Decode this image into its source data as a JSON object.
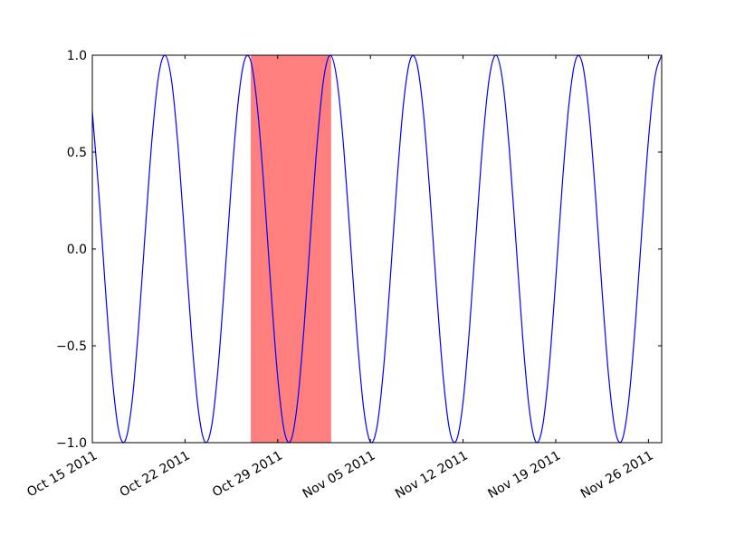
{
  "chart_data": {
    "type": "line",
    "x": [
      "2011-10-15 00:00",
      "2011-10-15 12:00",
      "2011-10-16 00:00",
      "2011-10-16 12:00",
      "2011-10-17 00:00",
      "2011-10-17 12:00",
      "2011-10-18 00:00",
      "2011-10-18 12:00",
      "2011-10-19 00:00",
      "2011-10-19 12:00",
      "2011-10-20 00:00",
      "2011-10-20 12:00",
      "2011-10-21 00:00",
      "2011-10-21 12:00",
      "2011-10-22 00:00",
      "2011-10-22 12:00",
      "2011-10-23 00:00",
      "2011-10-23 12:00",
      "2011-10-24 00:00",
      "2011-10-24 12:00",
      "2011-10-25 00:00",
      "2011-10-25 12:00",
      "2011-10-26 00:00",
      "2011-10-26 12:00",
      "2011-10-27 00:00",
      "2011-10-27 12:00",
      "2011-10-28 00:00",
      "2011-10-28 12:00",
      "2011-10-29 00:00",
      "2011-10-29 12:00",
      "2011-10-30 00:00",
      "2011-10-30 12:00",
      "2011-10-31 00:00",
      "2011-10-31 12:00",
      "2011-11-01 00:00",
      "2011-11-01 12:00",
      "2011-11-02 00:00",
      "2011-11-02 12:00",
      "2011-11-03 00:00",
      "2011-11-03 12:00",
      "2011-11-04 00:00",
      "2011-11-04 12:00",
      "2011-11-05 00:00",
      "2011-11-05 12:00",
      "2011-11-06 00:00",
      "2011-11-06 12:00",
      "2011-11-07 00:00",
      "2011-11-07 12:00",
      "2011-11-08 00:00",
      "2011-11-08 12:00",
      "2011-11-09 00:00",
      "2011-11-09 12:00",
      "2011-11-10 00:00",
      "2011-11-10 12:00",
      "2011-11-11 00:00",
      "2011-11-11 12:00",
      "2011-11-12 00:00",
      "2011-11-12 12:00",
      "2011-11-13 00:00",
      "2011-11-13 12:00",
      "2011-11-14 00:00",
      "2011-11-14 12:00",
      "2011-11-15 00:00",
      "2011-11-15 12:00",
      "2011-11-16 00:00",
      "2011-11-16 12:00",
      "2011-11-17 00:00",
      "2011-11-17 12:00",
      "2011-11-18 00:00",
      "2011-11-18 12:00",
      "2011-11-19 00:00",
      "2011-11-19 12:00",
      "2011-11-20 00:00",
      "2011-11-20 12:00",
      "2011-11-21 00:00",
      "2011-11-21 12:00",
      "2011-11-22 00:00",
      "2011-11-22 12:00",
      "2011-11-23 00:00",
      "2011-11-23 12:00",
      "2011-11-24 00:00",
      "2011-11-24 12:00",
      "2011-11-25 00:00",
      "2011-11-25 12:00",
      "2011-11-26 00:00",
      "2011-11-26 12:00",
      "2011-11-27 00:00"
    ],
    "series": [
      {
        "color": "#0000ff",
        "values": [
          0.7071,
          0.279,
          -0.2181,
          -0.6613,
          -0.9409,
          -0.9877,
          -0.7902,
          -0.3971,
          0.0941,
          0.5621,
          0.891,
          0.9995,
          0.8607,
          0.509,
          0.0314,
          -0.454,
          -0.8271,
          -0.9956,
          -0.9178,
          -0.6129,
          -0.1564,
          0.3387,
          0.7501,
          0.9759,
          0.9603,
          0.7071,
          0.279,
          -0.2181,
          -0.6613,
          -0.9409,
          -0.9877,
          -0.7902,
          -0.3971,
          0.0941,
          0.5621,
          0.891,
          0.9995,
          0.8607,
          0.509,
          0.0314,
          -0.454,
          -0.8271,
          -0.9956,
          -0.9178,
          -0.6129,
          -0.1564,
          0.3387,
          0.7501,
          0.9759,
          0.9603,
          0.7071,
          0.279,
          -0.2181,
          -0.6613,
          -0.9409,
          -0.9877,
          -0.7902,
          -0.3971,
          0.0941,
          0.5621,
          0.891,
          0.9995,
          0.8607,
          0.509,
          0.0314,
          -0.454,
          -0.8271,
          -0.9956,
          -0.9178,
          -0.6129,
          -0.1564,
          0.3387,
          0.7501,
          0.9759,
          0.9603,
          0.7071,
          0.279,
          -0.2181,
          -0.6613,
          -0.9409,
          -0.9877,
          -0.7902,
          -0.3971,
          0.0941,
          0.5621,
          0.891,
          0.9995
        ]
      }
    ],
    "spans": [
      {
        "start": "2011-10-27",
        "end": "2011-11-02",
        "color": "#ff7f7f"
      }
    ],
    "xlim": [
      "2011-10-15",
      "2011-11-27"
    ],
    "xticks": [
      {
        "value": "2011-10-15",
        "label": "Oct 15 2011"
      },
      {
        "value": "2011-10-22",
        "label": "Oct 22 2011"
      },
      {
        "value": "2011-10-29",
        "label": "Oct 29 2011"
      },
      {
        "value": "2011-11-05",
        "label": "Nov 05 2011"
      },
      {
        "value": "2011-11-12",
        "label": "Nov 12 2011"
      },
      {
        "value": "2011-11-19",
        "label": "Nov 19 2011"
      },
      {
        "value": "2011-11-26",
        "label": "Nov 26 2011"
      }
    ],
    "ylim": [
      -1,
      1
    ],
    "yticks": [
      {
        "value": -1,
        "label": "−1.0"
      },
      {
        "value": -0.5,
        "label": "−0.5"
      },
      {
        "value": 0,
        "label": "0.0"
      },
      {
        "value": 0.5,
        "label": "0.5"
      },
      {
        "value": 1,
        "label": "1.0"
      }
    ],
    "grid": false
  }
}
